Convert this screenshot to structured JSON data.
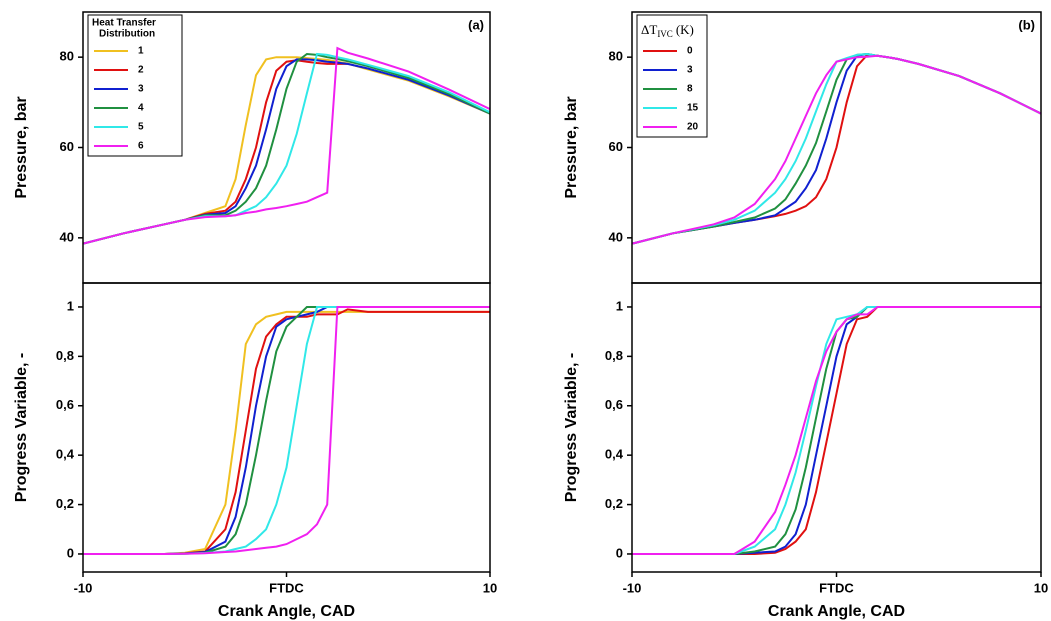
{
  "chart_data": [
    {
      "type": "line",
      "annotation": "(a)",
      "ylabel": "Pressure, bar",
      "legend": "upper left",
      "legend_title": [
        "Heat Transfer",
        "Distribution"
      ],
      "xlim": [
        -10,
        10
      ],
      "ylim": [
        30,
        90
      ],
      "yticks": [
        40,
        60,
        80
      ],
      "x": [
        -10,
        -8,
        -6,
        -5,
        -4,
        -3,
        -2.5,
        -2,
        -1.5,
        -1,
        -0.5,
        0,
        0.5,
        1,
        1.5,
        2,
        2.5,
        3,
        4,
        6,
        8,
        10
      ],
      "series": [
        {
          "name": "1",
          "color": "#f0c020",
          "values": [
            38.7,
            41,
            43,
            44,
            45.5,
            47,
            53,
            65,
            76,
            79.5,
            80,
            80,
            80,
            79.8,
            79.6,
            79.4,
            79,
            78.6,
            77.3,
            74.8,
            71.3,
            67.5
          ]
        },
        {
          "name": "2",
          "color": "#e01010",
          "values": [
            38.7,
            41,
            43,
            44,
            45.3,
            46,
            48,
            53,
            60,
            70,
            77,
            79,
            79.3,
            79,
            78.7,
            78.5,
            78.5,
            78.5,
            null,
            null,
            null,
            null
          ]
        },
        {
          "name": "3",
          "color": "#1020d0",
          "values": [
            38.7,
            41,
            43,
            44,
            45.1,
            45.5,
            47,
            51,
            56,
            64,
            73,
            78,
            79.5,
            79.5,
            79.3,
            79,
            78.8,
            78.5,
            77.5,
            75,
            71.5,
            67.5
          ]
        },
        {
          "name": "4",
          "color": "#209040",
          "values": [
            38.7,
            41,
            43,
            44,
            45,
            45,
            46,
            48,
            51,
            56,
            64,
            73,
            79,
            80.7,
            80.5,
            80,
            79.6,
            79.1,
            78,
            75.4,
            71.8,
            67.5
          ]
        },
        {
          "name": "5",
          "color": "#30e8e8",
          "values": [
            38.7,
            41,
            43,
            44,
            44.8,
            44.8,
            45,
            46,
            47,
            49,
            52,
            56,
            63,
            72,
            80.7,
            80.5,
            80,
            79.5,
            78.3,
            75.8,
            72.2,
            67.8
          ]
        },
        {
          "name": "6",
          "color": "#f020f0",
          "values": [
            38.7,
            41,
            43,
            44,
            44.6,
            44.8,
            45,
            45.5,
            45.8,
            46.3,
            46.6,
            47,
            47.5,
            48,
            49,
            50,
            82,
            81,
            79.7,
            76.8,
            72.8,
            68.5
          ]
        }
      ]
    },
    {
      "type": "line",
      "ylabel": "Progress Variable, -",
      "xlabel": "Crank Angle, CAD",
      "xlim": [
        -10,
        10
      ],
      "xticks": [
        -10,
        {
          "value": 0,
          "label": "FTDC"
        },
        10
      ],
      "ylim": [
        -0.073,
        1.097
      ],
      "yticks": [
        0,
        {
          "value": 0.2,
          "label": "0,2"
        },
        {
          "value": 0.4,
          "label": "0,4"
        },
        {
          "value": 0.6,
          "label": "0,6"
        },
        {
          "value": 0.8,
          "label": "0,8"
        },
        1
      ],
      "x": [
        -10,
        -8,
        -6,
        -5,
        -4,
        -3,
        -2.5,
        -2,
        -1.5,
        -1,
        -0.5,
        0,
        0.5,
        1,
        1.5,
        2,
        2.5,
        3,
        4,
        6,
        8,
        10
      ],
      "series": [
        {
          "color": "#f0c020",
          "values": [
            0,
            0,
            0,
            0.005,
            0.02,
            0.2,
            0.5,
            0.85,
            0.93,
            0.96,
            0.97,
            0.98,
            0.98,
            0.98,
            0.98,
            0.98,
            0.98,
            0.98,
            0.98,
            0.98,
            0.98,
            0.98
          ]
        },
        {
          "color": "#e01010",
          "values": [
            0,
            0,
            0,
            0.003,
            0.01,
            0.1,
            0.25,
            0.5,
            0.75,
            0.88,
            0.93,
            0.96,
            0.96,
            0.96,
            0.97,
            0.97,
            0.97,
            0.99,
            0.98,
            0.98,
            0.98,
            0.98
          ]
        },
        {
          "color": "#1020d0",
          "values": [
            0,
            0,
            0,
            0.002,
            0.008,
            0.05,
            0.15,
            0.35,
            0.6,
            0.8,
            0.92,
            0.95,
            0.96,
            0.97,
            0.98,
            1,
            1,
            1,
            1,
            1,
            1,
            1
          ]
        },
        {
          "color": "#209040",
          "values": [
            0,
            0,
            0,
            0.001,
            0.005,
            0.03,
            0.08,
            0.2,
            0.4,
            0.62,
            0.82,
            0.92,
            0.96,
            1,
            1,
            1,
            1,
            1,
            1,
            1,
            1,
            1
          ]
        },
        {
          "color": "#30e8e8",
          "values": [
            0,
            0,
            0,
            0.001,
            0.004,
            0.01,
            0.02,
            0.03,
            0.06,
            0.1,
            0.2,
            0.35,
            0.6,
            0.85,
            1,
            1,
            1,
            1,
            1,
            1,
            1,
            1
          ]
        },
        {
          "color": "#f020f0",
          "values": [
            0,
            0,
            0,
            0.001,
            0.003,
            0.008,
            0.01,
            0.015,
            0.02,
            0.025,
            0.03,
            0.04,
            0.06,
            0.08,
            0.12,
            0.2,
            1,
            1,
            1,
            1,
            1,
            1
          ]
        }
      ]
    },
    {
      "type": "line",
      "annotation": "(b)",
      "ylabel": "Pressure, bar",
      "legend": "upper left",
      "legend_title": {
        "main": "ΔT",
        "sub": "IVC",
        "unit": "(K)"
      },
      "xlim": [
        -10,
        10
      ],
      "ylim": [
        30,
        90
      ],
      "yticks": [
        40,
        60,
        80
      ],
      "x": [
        -10,
        -8,
        -6,
        -5,
        -4,
        -3,
        -2.5,
        -2,
        -1.5,
        -1,
        -0.5,
        0,
        0.5,
        1,
        1.5,
        2,
        2.5,
        3,
        4,
        6,
        8,
        10
      ],
      "series": [
        {
          "name": "0",
          "color": "#e01010",
          "values": [
            38.7,
            41,
            42.5,
            43.3,
            44,
            44.8,
            45.3,
            46,
            47,
            49,
            53,
            60,
            70,
            78,
            80.5,
            80.3,
            80,
            79.6,
            78.5,
            75.8,
            72,
            67.5
          ]
        },
        {
          "name": "3",
          "color": "#1020d0",
          "values": [
            38.7,
            41,
            42.5,
            43.3,
            44,
            45,
            46.5,
            48,
            51,
            55,
            62,
            70,
            77,
            80.3,
            80.7,
            80.3,
            80,
            79.6,
            78.5,
            75.8,
            72,
            67.5
          ]
        },
        {
          "name": "8",
          "color": "#209040",
          "values": [
            38.7,
            41,
            42.5,
            43.5,
            44.5,
            46.5,
            48.5,
            52,
            56,
            61,
            68,
            75,
            79.5,
            80.5,
            80.7,
            80.3,
            80,
            79.6,
            78.5,
            75.8,
            72,
            67.5
          ]
        },
        {
          "name": "15",
          "color": "#30e8e8",
          "values": [
            38.7,
            41,
            42.8,
            44,
            46,
            50,
            53,
            57,
            62,
            68,
            74,
            79,
            79.8,
            80.5,
            80.7,
            80.3,
            80,
            79.6,
            78.5,
            75.8,
            72,
            67.5
          ]
        },
        {
          "name": "20",
          "color": "#f020f0",
          "values": [
            38.7,
            41,
            43,
            44.5,
            47.5,
            53,
            57,
            62,
            67,
            72,
            76,
            79,
            79.5,
            80,
            80.1,
            80.3,
            80,
            79.6,
            78.5,
            75.8,
            72,
            67.5
          ]
        }
      ]
    },
    {
      "type": "line",
      "ylabel": "Progress Variable, -",
      "xlabel": "Crank Angle, CAD",
      "xlim": [
        -10,
        10
      ],
      "xticks": [
        -10,
        {
          "value": 0,
          "label": "FTDC"
        },
        10
      ],
      "ylim": [
        -0.073,
        1.097
      ],
      "yticks": [
        0,
        {
          "value": 0.2,
          "label": "0,2"
        },
        {
          "value": 0.4,
          "label": "0,4"
        },
        {
          "value": 0.6,
          "label": "0,6"
        },
        {
          "value": 0.8,
          "label": "0,8"
        },
        1
      ],
      "x": [
        -10,
        -8,
        -6,
        -5,
        -4,
        -3,
        -2.5,
        -2,
        -1.5,
        -1,
        -0.5,
        0,
        0.5,
        1,
        1.5,
        2,
        2.5,
        3,
        4,
        6,
        8,
        10
      ],
      "series": [
        {
          "color": "#e01010",
          "values": [
            0,
            0,
            0,
            0,
            0,
            0.005,
            0.02,
            0.05,
            0.1,
            0.25,
            0.45,
            0.65,
            0.85,
            0.95,
            0.96,
            1,
            1,
            1,
            1,
            1,
            1,
            1
          ]
        },
        {
          "color": "#1020d0",
          "values": [
            0,
            0,
            0,
            0,
            0.005,
            0.01,
            0.03,
            0.08,
            0.2,
            0.4,
            0.6,
            0.8,
            0.93,
            0.96,
            1,
            1,
            1,
            1,
            1,
            1,
            1,
            1
          ]
        },
        {
          "color": "#209040",
          "values": [
            0,
            0,
            0,
            0,
            0.01,
            0.03,
            0.08,
            0.18,
            0.35,
            0.55,
            0.75,
            0.9,
            0.95,
            0.96,
            1,
            1,
            1,
            1,
            1,
            1,
            1,
            1
          ]
        },
        {
          "color": "#30e8e8",
          "values": [
            0,
            0,
            0,
            0,
            0.03,
            0.1,
            0.2,
            0.33,
            0.5,
            0.68,
            0.85,
            0.95,
            0.96,
            0.97,
            1,
            1,
            1,
            1,
            1,
            1,
            1,
            1
          ]
        },
        {
          "color": "#f020f0",
          "values": [
            0,
            0,
            0,
            0,
            0.05,
            0.17,
            0.28,
            0.4,
            0.55,
            0.7,
            0.82,
            0.9,
            0.95,
            0.97,
            0.97,
            1,
            1,
            1,
            1,
            1,
            1,
            1
          ]
        }
      ]
    }
  ]
}
